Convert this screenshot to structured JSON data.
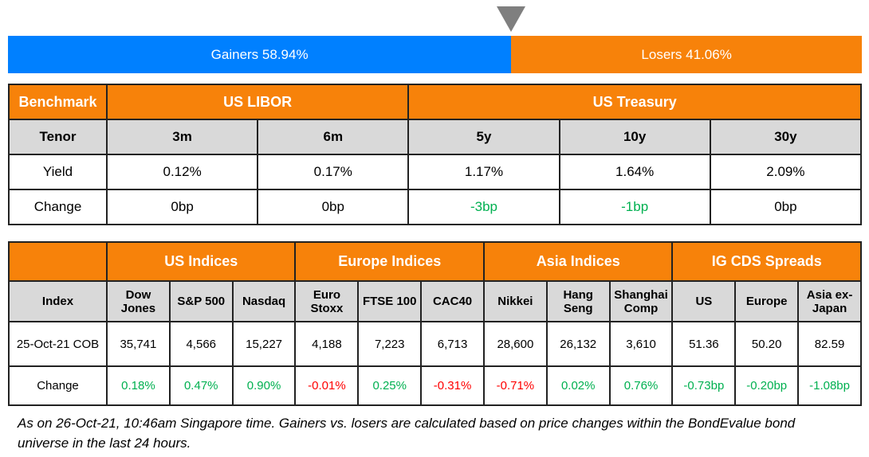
{
  "gauge": {
    "gainers_label": "Gainers 58.94%",
    "losers_label": "Losers 41.06%",
    "gainers_pct": 58.94,
    "losers_pct": 41.06,
    "gainers_color": "#0080FF",
    "losers_color": "#F7820A",
    "marker_icon": "triangle-down-icon"
  },
  "colors": {
    "header": "#F7820A",
    "subheader": "#D9D9D9",
    "positive": "#00B050",
    "negative": "#FF0000"
  },
  "rates": {
    "header": {
      "benchmark": "Benchmark",
      "libor": "US LIBOR",
      "treasury": "US Treasury"
    },
    "tenor_label": "Tenor",
    "yield_label": "Yield",
    "change_label": "Change",
    "columns": [
      {
        "tenor": "3m",
        "yield": "0.12%",
        "change": "0bp",
        "dir": "flat"
      },
      {
        "tenor": "6m",
        "yield": "0.17%",
        "change": "0bp",
        "dir": "flat"
      },
      {
        "tenor": "5y",
        "yield": "1.17%",
        "change": "-3bp",
        "dir": "neg-green"
      },
      {
        "tenor": "10y",
        "yield": "1.64%",
        "change": "-1bp",
        "dir": "neg-green"
      },
      {
        "tenor": "30y",
        "yield": "2.09%",
        "change": "0bp",
        "dir": "flat"
      }
    ]
  },
  "indices": {
    "groups": [
      "US Indices",
      "Europe Indices",
      "Asia Indices",
      "IG CDS Spreads"
    ],
    "index_label": "Index",
    "date_label": "25-Oct-21 COB",
    "change_label": "Change",
    "columns": [
      {
        "name": "Dow Jones",
        "value": "35,741",
        "change": "0.18%",
        "color": "green"
      },
      {
        "name": "S&P 500",
        "value": "4,566",
        "change": "0.47%",
        "color": "green"
      },
      {
        "name": "Nasdaq",
        "value": "15,227",
        "change": "0.90%",
        "color": "green"
      },
      {
        "name": "Euro Stoxx",
        "value": "4,188",
        "change": "-0.01%",
        "color": "red"
      },
      {
        "name": "FTSE 100",
        "value": "7,223",
        "change": "0.25%",
        "color": "green"
      },
      {
        "name": "CAC40",
        "value": "6,713",
        "change": "-0.31%",
        "color": "red"
      },
      {
        "name": "Nikkei",
        "value": "28,600",
        "change": "-0.71%",
        "color": "red"
      },
      {
        "name": "Hang Seng",
        "value": "26,132",
        "change": "0.02%",
        "color": "green"
      },
      {
        "name": "Shanghai Comp",
        "value": "3,610",
        "change": "0.76%",
        "color": "green"
      },
      {
        "name": "US",
        "value": "51.36",
        "change": "-0.73bp",
        "color": "green"
      },
      {
        "name": "Europe",
        "value": "50.20",
        "change": "-0.20bp",
        "color": "green"
      },
      {
        "name": "Asia ex-Japan",
        "value": "82.59",
        "change": "-1.08bp",
        "color": "green"
      }
    ]
  },
  "footnote": "As on 26-Oct-21, 10:46am Singapore time. Gainers vs. losers are calculated based on price changes within the BondEvalue bond universe in the last 24 hours."
}
